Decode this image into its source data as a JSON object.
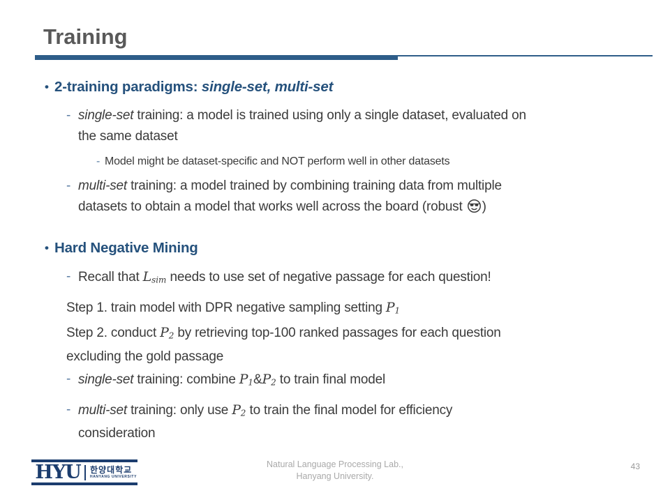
{
  "header": {
    "title": "Training"
  },
  "content": {
    "blocks": [
      {
        "style": "b1",
        "marker": "dot",
        "runs": [
          {
            "t": "2-training paradigms: ",
            "b": true
          },
          {
            "t": "single-set, multi-set",
            "b": true,
            "i": true
          }
        ]
      },
      {
        "style": "d2",
        "marker": "dash",
        "runs": [
          {
            "t": "single-set",
            "i": true
          },
          {
            "t": " training: a model is trained using only a single dataset, evaluated on"
          },
          {
            "br": true
          },
          {
            "t": "the same dataset"
          }
        ]
      },
      {
        "style": "d3",
        "marker": "dash",
        "runs": [
          {
            "t": "Model might be dataset-specific and NOT perform well in other datasets"
          }
        ]
      },
      {
        "style": "d2",
        "marker": "dash",
        "runs": [
          {
            "t": "multi-set",
            "i": true
          },
          {
            "t": " training: a model trained by combining training data from multiple"
          },
          {
            "br": true
          },
          {
            "t": "datasets to obtain a model that works well across the board (robust "
          },
          {
            "icon": "sunglasses-emoji"
          },
          {
            "t": ")"
          }
        ]
      },
      {
        "style": "b1 hard",
        "marker": "dot",
        "runs": [
          {
            "t": "Hard Negative Mining",
            "b": true
          }
        ]
      },
      {
        "style": "d2",
        "marker": "dash",
        "runs": [
          {
            "t": "Recall that "
          },
          {
            "t": "L",
            "math": true
          },
          {
            "t": "sim",
            "math": true,
            "sub": true
          },
          {
            "t": " needs to use set of negative passage for each question!"
          }
        ]
      },
      {
        "style": "step",
        "marker": "none",
        "runs": [
          {
            "t": "Step 1. train model with DPR negative sampling setting "
          },
          {
            "t": "P",
            "script": true
          },
          {
            "t": "1",
            "script": true,
            "sub": true
          }
        ]
      },
      {
        "style": "step",
        "marker": "none",
        "runs": [
          {
            "t": "Step 2. conduct "
          },
          {
            "t": "P",
            "script": true
          },
          {
            "t": "2",
            "script": true,
            "sub": true
          },
          {
            "t": " by retrieving top-100 ranked passages for each question"
          },
          {
            "br": true
          },
          {
            "t": "excluding the gold passage"
          }
        ]
      },
      {
        "style": "d2",
        "marker": "dash",
        "runs": [
          {
            "t": "single-set",
            "i": true
          },
          {
            "t": " training: combine "
          },
          {
            "t": "P",
            "script": true
          },
          {
            "t": "1",
            "script": true,
            "sub": true
          },
          {
            "t": "&"
          },
          {
            "t": "P",
            "script": true
          },
          {
            "t": "2",
            "script": true,
            "sub": true
          },
          {
            "t": " to train final model"
          }
        ]
      },
      {
        "style": "d2",
        "marker": "dash",
        "runs": [
          {
            "t": "multi-set",
            "i": true
          },
          {
            "t": " training: only use "
          },
          {
            "t": "P",
            "script": true
          },
          {
            "t": "2",
            "script": true,
            "sub": true
          },
          {
            "t": " to train the final model for efficiency"
          },
          {
            "br": true
          },
          {
            "t": "consideration"
          }
        ]
      }
    ]
  },
  "footer": {
    "credit_line1": "Natural Language Processing Lab.,",
    "credit_line2": "Hanyang University.",
    "page_number": "43",
    "logo": {
      "acronym": "HYU",
      "korean": "한양대학교",
      "english": "HANYANG UNIVERSITY"
    }
  },
  "colors": {
    "heading_navy": "#25517c",
    "rule_navy": "#2e5d89",
    "logo_navy": "#1c3d6e",
    "title_gray": "#595959",
    "body_text": "#3b3b3b",
    "dash_marker": "#5b7ca3",
    "footer_gray": "#a9a9a9"
  }
}
